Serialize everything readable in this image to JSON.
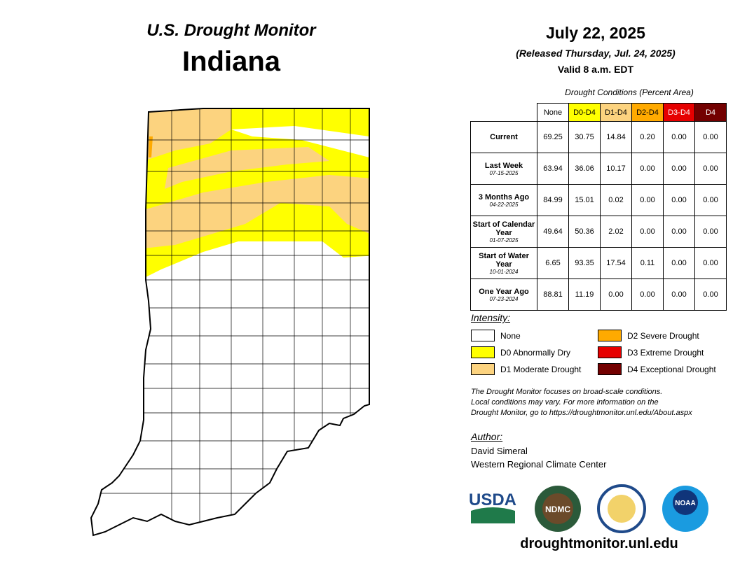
{
  "header": {
    "subtitle": "U.S. Drought Monitor",
    "title": "Indiana",
    "date": "July 22, 2025",
    "released": "(Released Thursday, Jul. 24, 2025)",
    "valid": "Valid 8 a.m. EDT"
  },
  "table": {
    "caption": "Drought Conditions (Percent Area)",
    "columns": [
      {
        "label": "None",
        "color": "#ffffff",
        "text_color": "#000000"
      },
      {
        "label": "D0-D4",
        "color": "#ffff00",
        "text_color": "#000000"
      },
      {
        "label": "D1-D4",
        "color": "#fcd37f",
        "text_color": "#000000"
      },
      {
        "label": "D2-D4",
        "color": "#ffaa00",
        "text_color": "#000000"
      },
      {
        "label": "D3-D4",
        "color": "#e60000",
        "text_color": "#ffffff"
      },
      {
        "label": "D4",
        "color": "#730000",
        "text_color": "#ffffff"
      }
    ],
    "rows": [
      {
        "label": "Current",
        "cells": [
          "69.25",
          "30.75",
          "14.84",
          "0.20",
          "0.00",
          "0.00"
        ]
      },
      {
        "label": "Last Week",
        "date": "07-15-2025",
        "cells": [
          "63.94",
          "36.06",
          "10.17",
          "0.00",
          "0.00",
          "0.00"
        ]
      },
      {
        "label": "3 Months Ago",
        "date": "04-22-2025",
        "cells": [
          "84.99",
          "15.01",
          "0.02",
          "0.00",
          "0.00",
          "0.00"
        ]
      },
      {
        "label": "Start of Calendar Year",
        "date": "01-07-2025",
        "cells": [
          "49.64",
          "50.36",
          "2.02",
          "0.00",
          "0.00",
          "0.00"
        ]
      },
      {
        "label": "Start of Water Year",
        "date": "10-01-2024",
        "cells": [
          "6.65",
          "93.35",
          "17.54",
          "0.11",
          "0.00",
          "0.00"
        ]
      },
      {
        "label": "One Year Ago",
        "date": "07-23-2024",
        "cells": [
          "88.81",
          "11.19",
          "0.00",
          "0.00",
          "0.00",
          "0.00"
        ]
      }
    ]
  },
  "legend": {
    "title": "Intensity:",
    "items": [
      {
        "label": "None",
        "color": "#ffffff"
      },
      {
        "label": "D0 Abnormally Dry",
        "color": "#ffff00"
      },
      {
        "label": "D1 Moderate Drought",
        "color": "#fcd37f"
      },
      {
        "label": "D2 Severe Drought",
        "color": "#ffaa00"
      },
      {
        "label": "D3 Extreme Drought",
        "color": "#e60000"
      },
      {
        "label": "D4 Exceptional Drought",
        "color": "#730000"
      }
    ]
  },
  "note": [
    "The Drought Monitor focuses on broad-scale conditions.",
    "Local conditions may vary. For more information on the",
    "Drought Monitor, go to https://droughtmonitor.unl.edu/About.aspx"
  ],
  "author": {
    "title": "Author:",
    "name": "David Simeral",
    "org": "Western Regional Climate Center"
  },
  "logos": {
    "usda": "USDA",
    "ndmc": "NDMC",
    "noaa": "NOAA"
  },
  "footer": {
    "url": "droughtmonitor.unl.edu"
  }
}
